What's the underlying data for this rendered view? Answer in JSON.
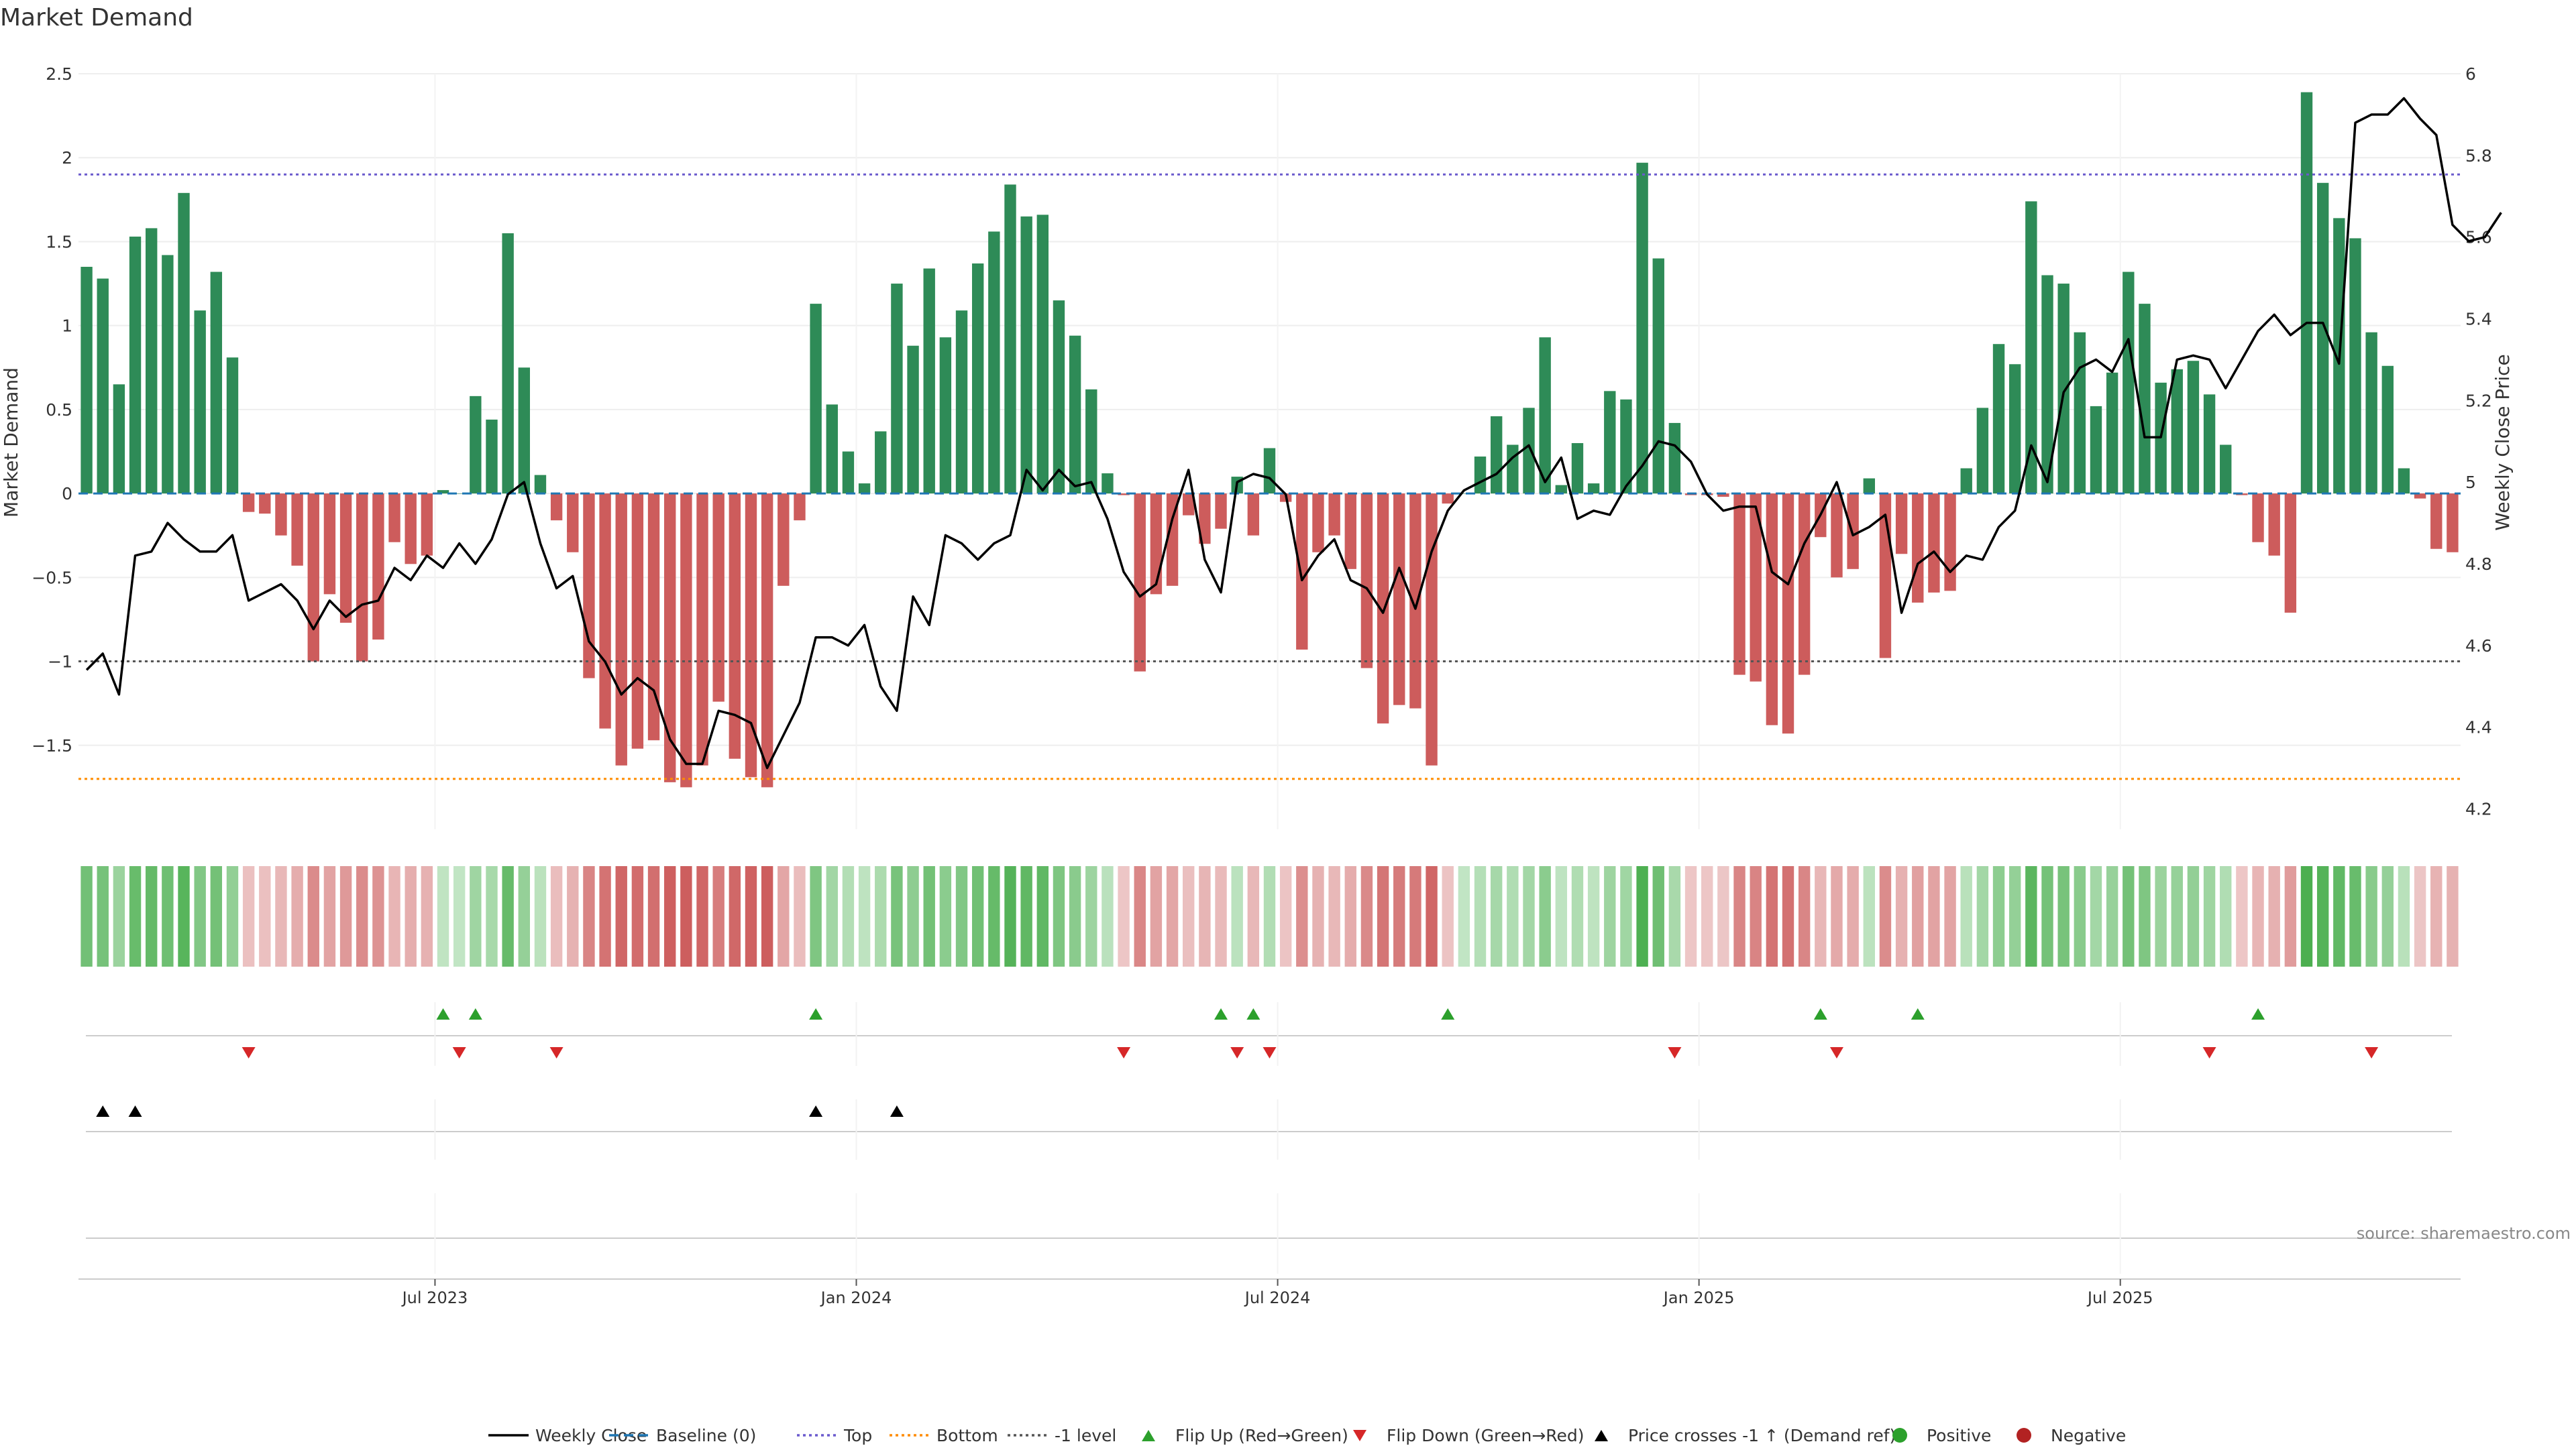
{
  "chart_data": {
    "type": "bar",
    "title": "Market Demand",
    "ylabel": "Market Demand",
    "y2label": "Weekly Close Price",
    "ylim": [
      -2.0,
      2.5
    ],
    "y2lim": [
      4.15,
      6.0
    ],
    "yticks": [
      "2.5",
      "2",
      "1.5",
      "1",
      "0.5",
      "0",
      "−0.5",
      "−1",
      "−1.5"
    ],
    "ytick_values": [
      2.5,
      2,
      1.5,
      1,
      0.5,
      0,
      -0.5,
      -1,
      -1.5
    ],
    "y2ticks": [
      "6",
      "5.8",
      "5.6",
      "5.4",
      "5.2",
      "5",
      "4.8",
      "4.6",
      "4.4",
      "4.2"
    ],
    "y2tick_values": [
      6.0,
      5.8,
      5.6,
      5.4,
      5.2,
      5.0,
      4.8,
      4.6,
      4.4,
      4.2
    ],
    "xtick_labels": [
      "Jul 2023",
      "Jan 2024",
      "Jul 2024",
      "Jan 2025",
      "Jul 2025"
    ],
    "xtick_week_index": [
      22,
      48,
      74,
      100,
      126
    ],
    "reference_lines": {
      "top": 1.9,
      "bottom": -1.7,
      "minus_one": -1.0,
      "baseline": 0
    },
    "demand": [
      1.35,
      1.28,
      0.65,
      1.53,
      1.58,
      1.42,
      1.79,
      1.09,
      1.32,
      0.81,
      -0.11,
      -0.12,
      -0.25,
      -0.43,
      -1.0,
      -0.6,
      -0.77,
      -1.0,
      -0.87,
      -0.29,
      -0.42,
      -0.37,
      0.02,
      0.0,
      0.58,
      0.44,
      1.55,
      0.75,
      0.11,
      -0.16,
      -0.35,
      -1.1,
      -1.4,
      -1.62,
      -1.52,
      -1.47,
      -1.72,
      -1.75,
      -1.62,
      -1.24,
      -1.58,
      -1.69,
      -1.75,
      -0.55,
      -0.16,
      1.13,
      0.53,
      0.25,
      0.06,
      0.37,
      1.25,
      0.88,
      1.34,
      0.93,
      1.09,
      1.37,
      1.56,
      1.84,
      1.65,
      1.66,
      1.15,
      0.94,
      0.62,
      0.12,
      -0.01,
      -1.06,
      -0.6,
      -0.55,
      -0.13,
      -0.3,
      -0.21,
      0.1,
      -0.25,
      0.27,
      -0.05,
      -0.93,
      -0.35,
      -0.25,
      -0.45,
      -1.04,
      -1.37,
      -1.26,
      -1.28,
      -1.62,
      -0.06,
      0.0,
      0.22,
      0.46,
      0.29,
      0.51,
      0.93,
      0.05,
      0.3,
      0.06,
      0.61,
      0.56,
      1.97,
      1.4,
      0.42,
      -0.01,
      -0.01,
      -0.02,
      -1.08,
      -1.12,
      -1.38,
      -1.43,
      -1.08,
      -0.26,
      -0.5,
      -0.45,
      0.09,
      -0.98,
      -0.36,
      -0.65,
      -0.59,
      -0.58,
      0.15,
      0.51,
      0.89,
      0.77,
      1.74,
      1.3,
      1.25,
      0.96,
      0.52,
      0.72,
      1.32,
      1.13,
      0.66,
      0.74,
      0.79,
      0.59,
      0.29,
      -0.01,
      -0.29,
      -0.37,
      -0.71,
      2.39,
      1.85,
      1.64,
      1.52,
      0.96,
      0.76,
      0.15,
      -0.03,
      -0.33,
      -0.35
    ],
    "weekly_close": [
      4.54,
      4.58,
      4.48,
      4.82,
      4.83,
      4.9,
      4.86,
      4.83,
      4.83,
      4.87,
      4.71,
      4.73,
      4.75,
      4.71,
      4.64,
      4.71,
      4.67,
      4.7,
      4.71,
      4.79,
      4.76,
      4.82,
      4.79,
      4.85,
      4.8,
      4.86,
      4.97,
      5.0,
      4.85,
      4.74,
      4.77,
      4.61,
      4.56,
      4.48,
      4.52,
      4.49,
      4.37,
      4.31,
      4.31,
      4.44,
      4.43,
      4.41,
      4.3,
      4.38,
      4.46,
      4.62,
      4.62,
      4.6,
      4.65,
      4.5,
      4.44,
      4.72,
      4.65,
      4.87,
      4.85,
      4.81,
      4.85,
      4.87,
      5.03,
      4.98,
      5.03,
      4.99,
      5.0,
      4.91,
      4.78,
      4.72,
      4.75,
      4.91,
      5.03,
      4.81,
      4.73,
      5.0,
      5.02,
      5.01,
      4.97,
      4.76,
      4.82,
      4.86,
      4.76,
      4.74,
      4.68,
      4.79,
      4.69,
      4.83,
      4.93,
      4.98,
      5.0,
      5.02,
      5.06,
      5.09,
      5.0,
      5.06,
      4.91,
      4.93,
      4.92,
      4.99,
      5.04,
      5.1,
      5.09,
      5.05,
      4.97,
      4.93,
      4.94,
      4.94,
      4.78,
      4.75,
      4.85,
      4.92,
      5.0,
      4.87,
      4.89,
      4.92,
      4.68,
      4.8,
      4.83,
      4.78,
      4.82,
      4.81,
      4.89,
      4.93,
      5.09,
      5.0,
      5.22,
      5.28,
      5.3,
      5.27,
      5.35,
      5.11,
      5.11,
      5.3,
      5.31,
      5.3,
      5.23,
      5.3,
      5.37,
      5.41,
      5.36,
      5.39,
      5.39,
      5.29,
      5.88,
      5.9,
      5.9,
      5.94,
      5.89,
      5.85,
      5.63,
      5.59,
      5.6,
      5.66
    ],
    "flip_up_weeks": [
      22,
      24,
      45,
      70,
      72,
      84,
      107,
      113,
      134
    ],
    "flip_down_weeks": [
      10,
      23,
      29,
      64,
      71,
      73,
      98,
      108,
      131,
      141
    ],
    "price_crosses_weeks": [
      1,
      3,
      45,
      50
    ],
    "source": "source: sharemaestro.com",
    "legend": [
      {
        "label": "Weekly Close",
        "symbol": "line",
        "color": "#000000"
      },
      {
        "label": "Baseline (0)",
        "symbol": "dash",
        "color": "#1f77b4"
      },
      {
        "label": "Top",
        "symbol": "dot",
        "color": "#6a5acd"
      },
      {
        "label": "Bottom",
        "symbol": "dot",
        "color": "#ff8c00"
      },
      {
        "label": "-1 level",
        "symbol": "dot",
        "color": "#555555"
      },
      {
        "label": "Flip Up (Red→Green)",
        "symbol": "tri-up",
        "color": "#2ca02c"
      },
      {
        "label": "Flip Down (Green→Red)",
        "symbol": "tri-down",
        "color": "#d62728"
      },
      {
        "label": "Price crosses -1 ↑ (Demand ref)",
        "symbol": "tri-up",
        "color": "#000000"
      },
      {
        "label": "Positive",
        "symbol": "circle",
        "color": "#2ca02c"
      },
      {
        "label": "Negative",
        "symbol": "circle",
        "color": "#b22222"
      }
    ],
    "colors": {
      "positive_bar": "#2e8b57",
      "negative_bar": "#cd5c5c",
      "price_line": "#000000",
      "top_line": "#6a5acd",
      "bottom_line": "#ff8c00",
      "minus_one_line": "#555555",
      "baseline": "#1f77b4",
      "flip_up": "#2ca02c",
      "flip_down": "#d62728",
      "cross": "#000000"
    }
  }
}
